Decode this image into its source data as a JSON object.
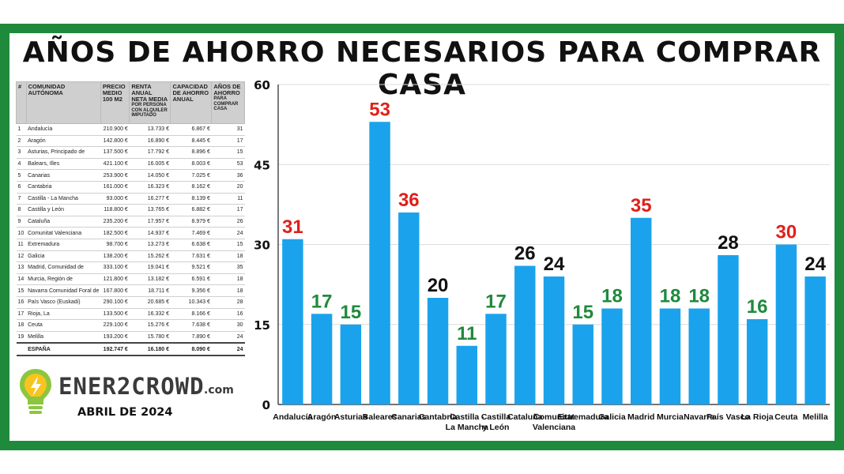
{
  "title": "AÑOS DE AHORRO NECESARIOS PARA COMPRAR CASA",
  "table": {
    "headers": {
      "idx": "#",
      "community": "COMUNIDAD AUTÓNOMA",
      "price": "PRECIO MEDIO 100 M2",
      "income": "RENTA ANUAL NETA MEDIA",
      "income_sub": "POR PERSONA CON ALQUILER IMPUTADO",
      "capacity": "CAPACIDAD DE AHORRO ANUAL",
      "years": "AÑOS DE AHORRO",
      "years_sub": "PARA COMPRAR CASA"
    },
    "rows": [
      {
        "n": "1",
        "name": "Andalucía",
        "price": "210.900 €",
        "income": "13.733 €",
        "cap": "6.867 €",
        "years": "31"
      },
      {
        "n": "2",
        "name": "Aragón",
        "price": "142.800 €",
        "income": "16.890 €",
        "cap": "8.445 €",
        "years": "17"
      },
      {
        "n": "3",
        "name": "Asturias, Principado de",
        "price": "137.500 €",
        "income": "17.792 €",
        "cap": "8.896 €",
        "years": "15"
      },
      {
        "n": "4",
        "name": "Balears, Illes",
        "price": "421.100 €",
        "income": "16.005 €",
        "cap": "8.003 €",
        "years": "53"
      },
      {
        "n": "5",
        "name": "Canarias",
        "price": "253.900 €",
        "income": "14.050 €",
        "cap": "7.025 €",
        "years": "36"
      },
      {
        "n": "6",
        "name": "Cantabria",
        "price": "161.000 €",
        "income": "16.323 €",
        "cap": "8.162 €",
        "years": "20"
      },
      {
        "n": "7",
        "name": "Castilla - La Mancha",
        "price": "93.000 €",
        "income": "16.277 €",
        "cap": "8.139 €",
        "years": "11"
      },
      {
        "n": "8",
        "name": "Castilla y León",
        "price": "118.800 €",
        "income": "13.765 €",
        "cap": "6.882 €",
        "years": "17"
      },
      {
        "n": "9",
        "name": "Cataluña",
        "price": "235.200 €",
        "income": "17.957 €",
        "cap": "8.979 €",
        "years": "26"
      },
      {
        "n": "10",
        "name": "Comunitat Valenciana",
        "price": "182.500 €",
        "income": "14.937 €",
        "cap": "7.469 €",
        "years": "24"
      },
      {
        "n": "11",
        "name": "Extremadura",
        "price": "98.700 €",
        "income": "13.273 €",
        "cap": "6.638 €",
        "years": "15"
      },
      {
        "n": "12",
        "name": "Galicia",
        "price": "138.200 €",
        "income": "15.262 €",
        "cap": "7.631 €",
        "years": "18"
      },
      {
        "n": "13",
        "name": "Madrid, Comunidad de",
        "price": "333.100 €",
        "income": "19.041 €",
        "cap": "9.521 €",
        "years": "35"
      },
      {
        "n": "14",
        "name": "Murcia, Región de",
        "price": "121.800 €",
        "income": "13.182 €",
        "cap": "6.591 €",
        "years": "18"
      },
      {
        "n": "15",
        "name": "Navarra Comunidad Foral de",
        "price": "167.800 €",
        "income": "18.711 €",
        "cap": "9.356 €",
        "years": "18"
      },
      {
        "n": "16",
        "name": "País Vasco (Euskadi)",
        "price": "290.100 €",
        "income": "20.685 €",
        "cap": "10.343 €",
        "years": "28"
      },
      {
        "n": "17",
        "name": "Rioja, La",
        "price": "133.500 €",
        "income": "16.332 €",
        "cap": "8.166 €",
        "years": "16"
      },
      {
        "n": "18",
        "name": "Ceuta",
        "price": "229.100 €",
        "income": "15.276 €",
        "cap": "7.638 €",
        "years": "30"
      },
      {
        "n": "19",
        "name": "Melilla",
        "price": "193.200 €",
        "income": "15.780 €",
        "cap": "7.890 €",
        "years": "24"
      }
    ],
    "total": {
      "n": "",
      "name": "ESPAÑA",
      "price": "192.747 €",
      "income": "16.180 €",
      "cap": "8.090 €",
      "years": "24"
    }
  },
  "logo": {
    "brand": "ENER2CROWD",
    "suffix": ".com",
    "date": "ABRIL DE 2024",
    "icon": "lightbulb-icon"
  },
  "colors": {
    "frame": "#1f8a3c",
    "bar": "#1aa3ec",
    "label_high": "#e0201b",
    "label_mid": "#111111",
    "label_low": "#1f8a3c"
  },
  "chart_data": {
    "type": "bar",
    "categories": [
      "Andalucía",
      "Aragón",
      "Asturias",
      "Baleares",
      "Canarias",
      "Cantabria",
      "Castilla - La Mancha",
      "Castilla y León",
      "Cataluña",
      "Comunitat Valenciana",
      "Extremadura",
      "Galicia",
      "Madrid",
      "Murcia",
      "Navarra",
      "País Vasco",
      "La Rioja",
      "Ceuta",
      "Melilla"
    ],
    "category_lines": [
      [
        "Andalucía"
      ],
      [
        "Aragón"
      ],
      [
        "Asturias"
      ],
      [
        "Baleares"
      ],
      [
        "Canarias"
      ],
      [
        "Cantabria"
      ],
      [
        "Castilla -",
        "La Mancha"
      ],
      [
        "Castilla",
        "y León"
      ],
      [
        "Cataluña"
      ],
      [
        "Comunitat",
        "Valenciana"
      ],
      [
        "Extremadura"
      ],
      [
        "Galicia"
      ],
      [
        "Madrid"
      ],
      [
        "Murcia"
      ],
      [
        "Navarra"
      ],
      [
        "País Vasco"
      ],
      [
        "La Rioja"
      ],
      [
        "Ceuta"
      ],
      [
        "Melilla"
      ]
    ],
    "values": [
      31,
      17,
      15,
      53,
      36,
      20,
      11,
      17,
      26,
      24,
      15,
      18,
      35,
      18,
      18,
      28,
      16,
      30,
      24
    ],
    "label_colors": [
      "red",
      "green",
      "green",
      "red",
      "red",
      "black",
      "green",
      "green",
      "black",
      "black",
      "green",
      "green",
      "red",
      "green",
      "green",
      "black",
      "green",
      "red",
      "black"
    ],
    "yticks": [
      0,
      15,
      30,
      45,
      60
    ],
    "ylim": [
      0,
      60
    ],
    "grid": true,
    "title": "",
    "xlabel": "",
    "ylabel": ""
  }
}
